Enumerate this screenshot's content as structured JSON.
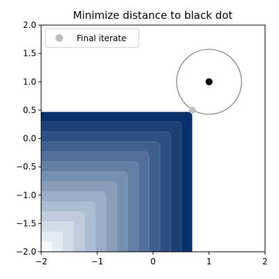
{
  "chart_data": {
    "type": "contour",
    "title": "Minimize distance to black dot",
    "xlabel": "",
    "ylabel": "",
    "xlim": [
      -2,
      2
    ],
    "ylim": [
      -2,
      2
    ],
    "xticks": [
      -2,
      -1,
      0,
      1,
      2
    ],
    "yticks": [
      -2.0,
      -1.5,
      -1.0,
      -0.5,
      0.0,
      0.5,
      1.0,
      1.5,
      2.0
    ],
    "xtick_labels": [
      "−2",
      "−1",
      "0",
      "1",
      "2"
    ],
    "ytick_labels": [
      "−2.0",
      "−1.5",
      "−1.0",
      "−0.5",
      "0.0",
      "0.5",
      "1.0",
      "1.5",
      "2.0"
    ],
    "grid": false,
    "legend": {
      "position": "top-left",
      "entries": [
        "Final iterate"
      ]
    },
    "feasible_region": {
      "x_max": 0.7,
      "y_max": 0.47,
      "colormap": "Blues",
      "levels": 14
    },
    "target_point": {
      "x": 1.0,
      "y": 1.0,
      "color": "#000000"
    },
    "circle": {
      "center": [
        1.0,
        1.0
      ],
      "radius": 0.58,
      "color": "#808080"
    },
    "final_iterate": {
      "label": "Final iterate",
      "x": 0.7,
      "y": 0.5,
      "color": "#bfbfbf"
    }
  }
}
